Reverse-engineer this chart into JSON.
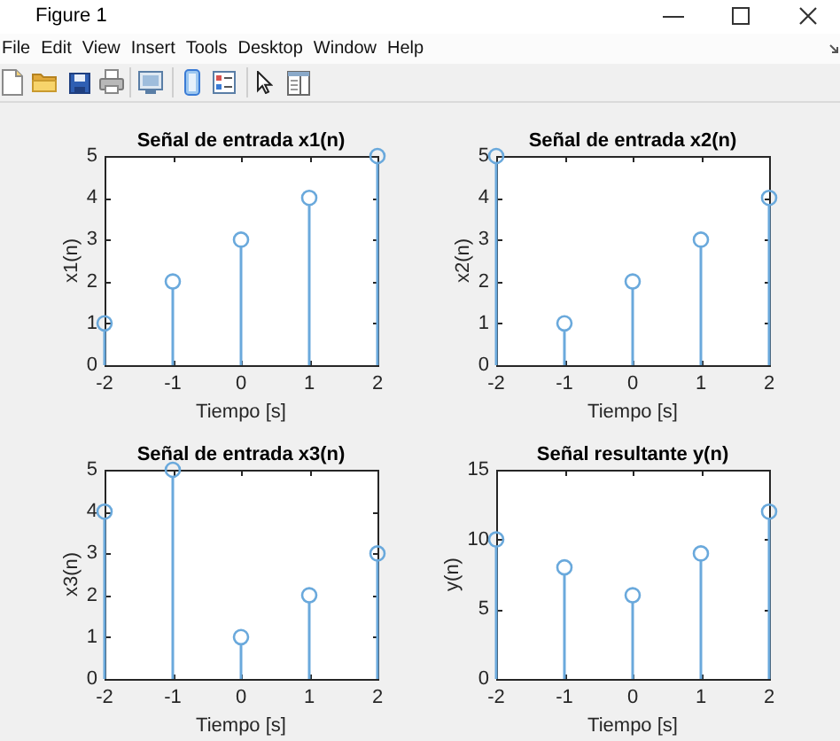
{
  "chart_data": [
    {
      "type": "other",
      "title": "Figure 1",
      "annotations": [
        "File",
        "Edit",
        "View",
        "Insert",
        "Tools",
        "Desktop",
        "Window",
        "Help"
      ]
    },
    {
      "type": "lollipop",
      "title": "Señal de entrada x1(n)",
      "xlabel": "Tiempo [s]",
      "ylabel": "x1(n)",
      "x": [
        -2,
        -1,
        0,
        1,
        2
      ],
      "values": [
        1,
        2,
        3,
        4,
        5
      ],
      "color": "#6aa9dc",
      "marker": "circle",
      "xlim": [
        -2,
        2
      ],
      "xticks": [
        -2,
        -1,
        0,
        1,
        2
      ],
      "ylim": [
        0,
        5
      ],
      "yticks": [
        0,
        1,
        2,
        3,
        4,
        5
      ]
    },
    {
      "type": "lollipop",
      "title": "Señal de entrada x2(n)",
      "xlabel": "Tiempo [s]",
      "ylabel": "x2(n)",
      "x": [
        -2,
        -1,
        0,
        1,
        2
      ],
      "values": [
        5,
        1,
        2,
        3,
        4
      ],
      "color": "#6aa9dc",
      "marker": "circle",
      "xlim": [
        -2,
        2
      ],
      "xticks": [
        -2,
        -1,
        0,
        1,
        2
      ],
      "ylim": [
        0,
        5
      ],
      "yticks": [
        0,
        1,
        2,
        3,
        4,
        5
      ]
    },
    {
      "type": "lollipop",
      "title": "Señal de entrada x3(n)",
      "xlabel": "Tiempo [s]",
      "ylabel": "x3(n)",
      "x": [
        -2,
        -1,
        0,
        1,
        2
      ],
      "values": [
        4,
        5,
        1,
        2,
        3
      ],
      "color": "#6aa9dc",
      "marker": "circle",
      "xlim": [
        -2,
        2
      ],
      "xticks": [
        -2,
        -1,
        0,
        1,
        2
      ],
      "ylim": [
        0,
        5
      ],
      "yticks": [
        0,
        1,
        2,
        3,
        4,
        5
      ]
    },
    {
      "type": "lollipop",
      "title": "Señal resultante y(n)",
      "xlabel": "Tiempo [s]",
      "ylabel": "y(n)",
      "x": [
        -2,
        -1,
        0,
        1,
        2
      ],
      "values": [
        10,
        8,
        6,
        9,
        12
      ],
      "color": "#6aa9dc",
      "marker": "circle",
      "xlim": [
        -2,
        2
      ],
      "xticks": [
        -2,
        -1,
        0,
        1,
        2
      ],
      "ylim": [
        0,
        15
      ],
      "yticks": [
        0,
        5,
        10,
        15
      ]
    }
  ]
}
